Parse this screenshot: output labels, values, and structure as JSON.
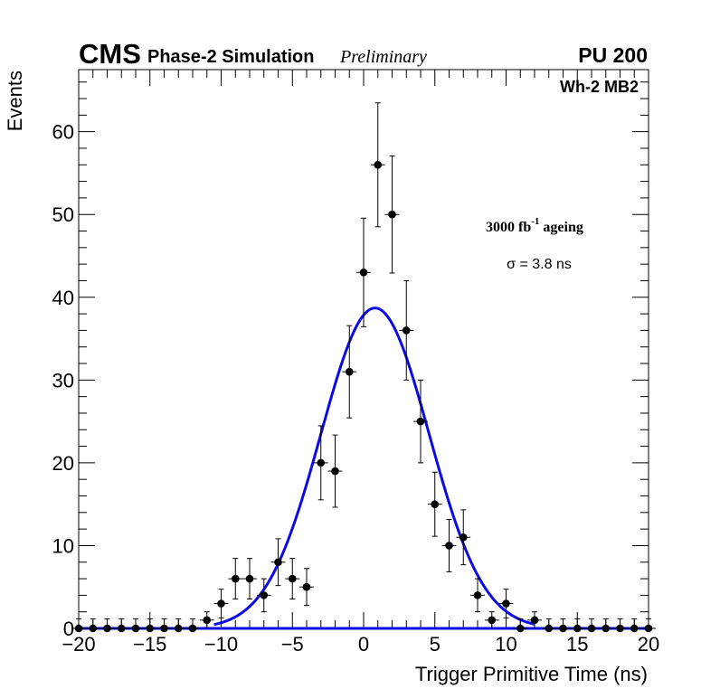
{
  "header": {
    "experiment": "CMS",
    "subtitle": "Phase-2 Simulation",
    "status": "Preliminary",
    "pileup": "PU 200"
  },
  "annotations": {
    "region": "Wh-2 MB2",
    "ageing_prefix": "3000 fb",
    "ageing_exponent": "-1",
    "ageing_suffix": " ageing",
    "sigma": "σ = 3.8 ns"
  },
  "chart_data": {
    "type": "scatter",
    "title": "",
    "xlabel": "Trigger Primitive Time (ns)",
    "ylabel": "Events",
    "xlim": [
      -20,
      20
    ],
    "ylim": [
      0,
      67.5
    ],
    "xticks": [
      -20,
      -15,
      -10,
      -5,
      0,
      5,
      10,
      15,
      20
    ],
    "xtick_labels": [
      "−20",
      "−15",
      "−10",
      "−5",
      "0",
      "5",
      "10",
      "15",
      "20"
    ],
    "yticks": [
      0,
      10,
      20,
      30,
      40,
      50,
      60
    ],
    "ytick_labels": [
      "0",
      "10",
      "20",
      "30",
      "40",
      "50",
      "60"
    ],
    "series": [
      {
        "name": "Events",
        "style": "points-with-errors",
        "color": "#000000",
        "x": [
          -20,
          -19,
          -18,
          -17,
          -16,
          -15,
          -14,
          -13,
          -12,
          -11,
          -10,
          -9,
          -8,
          -7,
          -6,
          -5,
          -4,
          -3,
          -2,
          -1,
          0,
          1,
          2,
          3,
          4,
          5,
          6,
          7,
          8,
          9,
          10,
          11,
          12,
          13,
          14,
          15,
          16,
          17,
          18,
          19,
          20
        ],
        "y": [
          0,
          0,
          0,
          0,
          0,
          0,
          0,
          0,
          0,
          1,
          3,
          6,
          6,
          4,
          8,
          6,
          5,
          20,
          19,
          31,
          43,
          56,
          50,
          36,
          25,
          15,
          10,
          11,
          4,
          1,
          3,
          0,
          1,
          0,
          0,
          0,
          0,
          0,
          0,
          0,
          0
        ]
      },
      {
        "name": "Gaussian fit",
        "style": "line",
        "color": "#0a0ae6",
        "amplitude": 38.7,
        "mean": 0.8,
        "sigma": 3.8
      }
    ]
  }
}
